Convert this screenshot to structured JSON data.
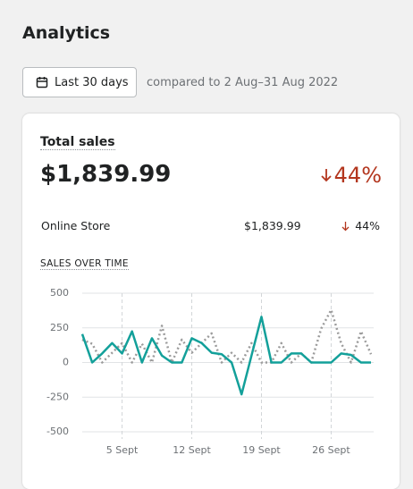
{
  "header": {
    "title": "Analytics"
  },
  "filter": {
    "button": "Last 30 days",
    "comparison": "compared to 2 Aug–31 Aug 2022"
  },
  "card": {
    "title": "Total sales",
    "total": "$1,839.99",
    "change": "44%",
    "rows": [
      {
        "label": "Online Store",
        "value": "$1,839.99",
        "change": "44%"
      }
    ],
    "chart_title": "SALES OVER TIME"
  },
  "chart_data": {
    "type": "line",
    "x": [
      1,
      2,
      3,
      4,
      5,
      6,
      7,
      8,
      9,
      10,
      11,
      12,
      13,
      14,
      15,
      16,
      17,
      18,
      19,
      20,
      21,
      22,
      23,
      24,
      25,
      26,
      27,
      28,
      29,
      30
    ],
    "series": [
      {
        "color": "#9b9b9b",
        "dashed": true,
        "values": [
          165,
          135,
          0,
          70,
          140,
          0,
          135,
          0,
          265,
          0,
          165,
          70,
          140,
          210,
          0,
          70,
          0,
          140,
          0,
          0,
          140,
          0,
          65,
          0,
          245,
          380,
          140,
          0,
          225,
          60
        ]
      },
      {
        "color": "#13a09a",
        "dashed": false,
        "values": [
          205,
          0,
          65,
          140,
          65,
          225,
          0,
          175,
          50,
          0,
          0,
          175,
          140,
          70,
          60,
          0,
          -230,
          50,
          330,
          0,
          0,
          65,
          65,
          0,
          0,
          0,
          65,
          55,
          0,
          0
        ]
      }
    ],
    "xlim": [
      1,
      30
    ],
    "xticks": [
      {
        "value": 5,
        "label": "5 Sept"
      },
      {
        "value": 12,
        "label": "12 Sept"
      },
      {
        "value": 19,
        "label": "19 Sept"
      },
      {
        "value": 26,
        "label": "26 Sept"
      }
    ],
    "ylim": [
      -500,
      500
    ],
    "yticks": [
      500,
      250,
      0,
      -250,
      -500
    ],
    "grid": true
  }
}
